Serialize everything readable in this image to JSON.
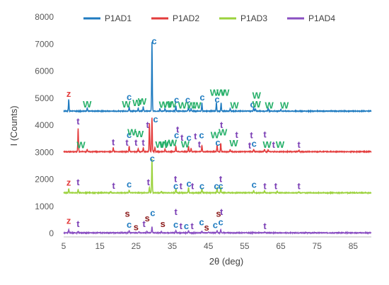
{
  "chart_data": {
    "type": "line",
    "xlabel": "2θ (deg)",
    "ylabel": "I (Counts)",
    "xlim": [
      5,
      90
    ],
    "ylim": [
      0,
      8000
    ],
    "x_ticks": [
      5,
      15,
      25,
      35,
      45,
      55,
      65,
      75,
      85
    ],
    "y_ticks": [
      0,
      1000,
      2000,
      3000,
      4000,
      5000,
      6000,
      7000,
      8000
    ],
    "grid": false,
    "legend_position": "top",
    "series": [
      {
        "name": "P1AD1",
        "color": "#1f7bc0",
        "baseline": 4520,
        "peaks": [
          [
            6.4,
            430
          ],
          [
            11.5,
            120
          ],
          [
            23.1,
            160
          ],
          [
            25.6,
            110
          ],
          [
            27.0,
            160
          ],
          [
            29.4,
            2550
          ],
          [
            31.6,
            90
          ],
          [
            33.0,
            90
          ],
          [
            36.0,
            200
          ],
          [
            39.5,
            220
          ],
          [
            40.2,
            90
          ],
          [
            43.2,
            300
          ],
          [
            47.2,
            300
          ],
          [
            48.5,
            300
          ],
          [
            51.0,
            90
          ],
          [
            57.5,
            120
          ],
          [
            58.0,
            90
          ],
          [
            61.5,
            110
          ],
          [
            65.0,
            70
          ]
        ],
        "labels": [
          {
            "x": 6.4,
            "y": 5050,
            "text": "z",
            "color": "#e33b3b"
          },
          {
            "x": 11.5,
            "y": 4660,
            "text": "W",
            "color": "#27b06a"
          },
          {
            "x": 22.3,
            "y": 4660,
            "text": "W",
            "color": "#27b06a"
          },
          {
            "x": 23.1,
            "y": 4930,
            "text": "c",
            "color": "#1f7bc0"
          },
          {
            "x": 25.2,
            "y": 4700,
            "text": "W",
            "color": "#27b06a"
          },
          {
            "x": 26.7,
            "y": 4760,
            "text": "W",
            "color": "#27b06a"
          },
          {
            "x": 30.0,
            "y": 7000,
            "text": "c",
            "color": "#1f7bc0"
          },
          {
            "x": 32.5,
            "y": 4640,
            "text": "W",
            "color": "#27b06a"
          },
          {
            "x": 33.6,
            "y": 4640,
            "text": "W",
            "color": "#27b06a"
          },
          {
            "x": 35.0,
            "y": 4660,
            "text": "W",
            "color": "#27b06a"
          },
          {
            "x": 36.2,
            "y": 4820,
            "text": "c",
            "color": "#1f7bc0"
          },
          {
            "x": 37.8,
            "y": 4620,
            "text": "W",
            "color": "#27b06a"
          },
          {
            "x": 39.3,
            "y": 4820,
            "text": "c",
            "color": "#1f7bc0"
          },
          {
            "x": 40.2,
            "y": 4620,
            "text": "W",
            "color": "#27b06a"
          },
          {
            "x": 41.8,
            "y": 4620,
            "text": "W",
            "color": "#27b06a"
          },
          {
            "x": 43.3,
            "y": 4920,
            "text": "c",
            "color": "#1f7bc0"
          },
          {
            "x": 46.6,
            "y": 5080,
            "text": "W",
            "color": "#27b06a"
          },
          {
            "x": 47.4,
            "y": 4840,
            "text": "c",
            "color": "#1f7bc0"
          },
          {
            "x": 48.4,
            "y": 5080,
            "text": "W",
            "color": "#27b06a"
          },
          {
            "x": 49.6,
            "y": 5080,
            "text": "W",
            "color": "#27b06a"
          },
          {
            "x": 52.2,
            "y": 4620,
            "text": "W",
            "color": "#27b06a"
          },
          {
            "x": 57.2,
            "y": 4660,
            "text": "c",
            "color": "#1f7bc0"
          },
          {
            "x": 58.3,
            "y": 4980,
            "text": "W",
            "color": "#27b06a"
          },
          {
            "x": 58.3,
            "y": 4660,
            "text": "W",
            "color": "#27b06a"
          },
          {
            "x": 61.8,
            "y": 4620,
            "text": "W",
            "color": "#27b06a"
          },
          {
            "x": 66.0,
            "y": 4620,
            "text": "W",
            "color": "#27b06a"
          }
        ]
      },
      {
        "name": "P1AD2",
        "color": "#e33b3b",
        "baseline": 3020,
        "peaks": [
          [
            9.0,
            850
          ],
          [
            11.5,
            80
          ],
          [
            18.7,
            150
          ],
          [
            23.1,
            200
          ],
          [
            25.6,
            120
          ],
          [
            27.0,
            150
          ],
          [
            28.7,
            1050
          ],
          [
            29.4,
            1250
          ],
          [
            30.2,
            150
          ],
          [
            33.0,
            100
          ],
          [
            36.0,
            200
          ],
          [
            39.5,
            200
          ],
          [
            40.2,
            120
          ],
          [
            43.2,
            230
          ],
          [
            47.4,
            250
          ],
          [
            48.4,
            300
          ],
          [
            51.0,
            80
          ],
          [
            57.5,
            90
          ],
          [
            60.5,
            90
          ],
          [
            61.5,
            70
          ],
          [
            70.0,
            60
          ]
        ],
        "labels": [
          {
            "x": 9.0,
            "y": 4020,
            "text": "t",
            "color": "#7b3fb5"
          },
          {
            "x": 9.8,
            "y": 3150,
            "text": "W",
            "color": "#27b06a"
          },
          {
            "x": 18.7,
            "y": 3250,
            "text": "t",
            "color": "#7b3fb5"
          },
          {
            "x": 22.5,
            "y": 3240,
            "text": "t",
            "color": "#7b3fb5"
          },
          {
            "x": 23.1,
            "y": 3530,
            "text": "c",
            "color": "#1f7bc0"
          },
          {
            "x": 23.8,
            "y": 3620,
            "text": "W",
            "color": "#27b06a"
          },
          {
            "x": 25.0,
            "y": 3240,
            "text": "t",
            "color": "#7b3fb5"
          },
          {
            "x": 25.9,
            "y": 3550,
            "text": "W",
            "color": "#27b06a"
          },
          {
            "x": 27.0,
            "y": 3240,
            "text": "t",
            "color": "#7b3fb5"
          },
          {
            "x": 28.2,
            "y": 3900,
            "text": "t",
            "color": "#7b3fb5"
          },
          {
            "x": 30.4,
            "y": 4100,
            "text": "c",
            "color": "#1f7bc0"
          },
          {
            "x": 31.5,
            "y": 3160,
            "text": "W",
            "color": "#27b06a"
          },
          {
            "x": 32.8,
            "y": 3160,
            "text": "W",
            "color": "#27b06a"
          },
          {
            "x": 34.1,
            "y": 3220,
            "text": "W",
            "color": "#27b06a"
          },
          {
            "x": 35.1,
            "y": 3230,
            "text": "W",
            "color": "#27b06a"
          },
          {
            "x": 36.2,
            "y": 3520,
            "text": "c",
            "color": "#1f7bc0"
          },
          {
            "x": 36.5,
            "y": 3730,
            "text": "t",
            "color": "#7b3fb5"
          },
          {
            "x": 37.7,
            "y": 3420,
            "text": "t",
            "color": "#7b3fb5"
          },
          {
            "x": 38.6,
            "y": 3180,
            "text": "W",
            "color": "#27b06a"
          },
          {
            "x": 39.6,
            "y": 3420,
            "text": "c",
            "color": "#1f7bc0"
          },
          {
            "x": 41.4,
            "y": 3480,
            "text": "t",
            "color": "#7b3fb5"
          },
          {
            "x": 43.1,
            "y": 3520,
            "text": "c",
            "color": "#1f7bc0"
          },
          {
            "x": 42.5,
            "y": 3180,
            "text": "t",
            "color": "#7b3fb5"
          },
          {
            "x": 46.8,
            "y": 3520,
            "text": "W",
            "color": "#27b06a"
          },
          {
            "x": 47.6,
            "y": 3240,
            "text": "c",
            "color": "#1f7bc0"
          },
          {
            "x": 48.6,
            "y": 3900,
            "text": "t",
            "color": "#7b3fb5"
          },
          {
            "x": 49.0,
            "y": 3620,
            "text": "W",
            "color": "#27b06a"
          },
          {
            "x": 52.0,
            "y": 3220,
            "text": "W",
            "color": "#27b06a"
          },
          {
            "x": 52.8,
            "y": 3530,
            "text": "t",
            "color": "#7b3fb5"
          },
          {
            "x": 57.6,
            "y": 3200,
            "text": "c",
            "color": "#1f7bc0"
          },
          {
            "x": 56.9,
            "y": 3520,
            "text": "t",
            "color": "#7b3fb5"
          },
          {
            "x": 56.4,
            "y": 3140,
            "text": "t",
            "color": "#7b3fb5"
          },
          {
            "x": 60.6,
            "y": 3540,
            "text": "t",
            "color": "#7b3fb5"
          },
          {
            "x": 61.2,
            "y": 3160,
            "text": "W",
            "color": "#27b06a"
          },
          {
            "x": 63.0,
            "y": 3160,
            "text": "t",
            "color": "#7b3fb5"
          },
          {
            "x": 64.8,
            "y": 3160,
            "text": "W",
            "color": "#27b06a"
          },
          {
            "x": 70.0,
            "y": 3160,
            "text": "t",
            "color": "#7b3fb5"
          }
        ]
      },
      {
        "name": "P1AD3",
        "color": "#9bd23c",
        "baseline": 1500,
        "peaks": [
          [
            6.4,
            150
          ],
          [
            9.0,
            130
          ],
          [
            18.0,
            50
          ],
          [
            23.1,
            100
          ],
          [
            28.7,
            200
          ],
          [
            29.4,
            1250
          ],
          [
            32.0,
            60
          ],
          [
            36.0,
            150
          ],
          [
            39.5,
            200
          ],
          [
            43.2,
            160
          ],
          [
            47.4,
            180
          ],
          [
            48.4,
            200
          ],
          [
            57.5,
            80
          ],
          [
            60.5,
            60
          ],
          [
            64.0,
            50
          ],
          [
            70.0,
            40
          ]
        ],
        "labels": [
          {
            "x": 6.4,
            "y": 1770,
            "text": "z",
            "color": "#e33b3b"
          },
          {
            "x": 9.0,
            "y": 1780,
            "text": "t",
            "color": "#7b3fb5"
          },
          {
            "x": 18.8,
            "y": 1650,
            "text": "t",
            "color": "#7b3fb5"
          },
          {
            "x": 23.1,
            "y": 1700,
            "text": "c",
            "color": "#1f7bc0"
          },
          {
            "x": 28.4,
            "y": 1780,
            "text": "t",
            "color": "#7b3fb5"
          },
          {
            "x": 29.5,
            "y": 2650,
            "text": "c",
            "color": "#1f7bc0"
          },
          {
            "x": 35.9,
            "y": 1890,
            "text": "t",
            "color": "#7b3fb5"
          },
          {
            "x": 36.0,
            "y": 1640,
            "text": "c",
            "color": "#1f7bc0"
          },
          {
            "x": 37.4,
            "y": 1640,
            "text": "t",
            "color": "#7b3fb5"
          },
          {
            "x": 39.6,
            "y": 1720,
            "text": "c",
            "color": "#1f7bc0"
          },
          {
            "x": 40.6,
            "y": 1640,
            "text": "t",
            "color": "#7b3fb5"
          },
          {
            "x": 43.2,
            "y": 1640,
            "text": "c",
            "color": "#1f7bc0"
          },
          {
            "x": 47.2,
            "y": 1640,
            "text": "c",
            "color": "#1f7bc0"
          },
          {
            "x": 48.4,
            "y": 1890,
            "text": "t",
            "color": "#7b3fb5"
          },
          {
            "x": 48.4,
            "y": 1640,
            "text": "c",
            "color": "#1f7bc0"
          },
          {
            "x": 57.6,
            "y": 1680,
            "text": "c",
            "color": "#1f7bc0"
          },
          {
            "x": 60.6,
            "y": 1640,
            "text": "t",
            "color": "#7b3fb5"
          },
          {
            "x": 63.6,
            "y": 1640,
            "text": "t",
            "color": "#7b3fb5"
          },
          {
            "x": 70.0,
            "y": 1640,
            "text": "t",
            "color": "#7b3fb5"
          }
        ]
      },
      {
        "name": "P1AD4",
        "color": "#8a4fc2",
        "baseline": 20,
        "peaks": [
          [
            6.4,
            110
          ],
          [
            9.0,
            60
          ],
          [
            23.1,
            80
          ],
          [
            25.8,
            40
          ],
          [
            28.0,
            50
          ],
          [
            29.4,
            220
          ],
          [
            32.0,
            60
          ],
          [
            36.0,
            90
          ],
          [
            39.5,
            80
          ],
          [
            43.2,
            70
          ],
          [
            45.0,
            40
          ],
          [
            47.4,
            90
          ],
          [
            48.4,
            110
          ],
          [
            57.5,
            30
          ],
          [
            60.6,
            30
          ]
        ],
        "labels": [
          {
            "x": 6.4,
            "y": 350,
            "text": "z",
            "color": "#e33b3b"
          },
          {
            "x": 9.0,
            "y": 230,
            "text": "t",
            "color": "#7b3fb5"
          },
          {
            "x": 22.6,
            "y": 620,
            "text": "s",
            "color": "#8b1a1a"
          },
          {
            "x": 23.1,
            "y": 210,
            "text": "c",
            "color": "#1f7bc0"
          },
          {
            "x": 25.0,
            "y": 120,
            "text": "s",
            "color": "#8b1a1a"
          },
          {
            "x": 27.2,
            "y": 240,
            "text": "t",
            "color": "#7b3fb5"
          },
          {
            "x": 28.1,
            "y": 440,
            "text": "s",
            "color": "#8b1a1a"
          },
          {
            "x": 29.6,
            "y": 640,
            "text": "c",
            "color": "#1f7bc0"
          },
          {
            "x": 32.4,
            "y": 240,
            "text": "s",
            "color": "#8b1a1a"
          },
          {
            "x": 36.0,
            "y": 210,
            "text": "c",
            "color": "#1f7bc0"
          },
          {
            "x": 36.0,
            "y": 680,
            "text": "t",
            "color": "#7b3fb5"
          },
          {
            "x": 37.4,
            "y": 160,
            "text": "t",
            "color": "#7b3fb5"
          },
          {
            "x": 38.9,
            "y": 160,
            "text": "c",
            "color": "#1f7bc0"
          },
          {
            "x": 40.5,
            "y": 160,
            "text": "t",
            "color": "#7b3fb5"
          },
          {
            "x": 43.1,
            "y": 300,
            "text": "c",
            "color": "#1f7bc0"
          },
          {
            "x": 44.5,
            "y": 100,
            "text": "s",
            "color": "#8b1a1a"
          },
          {
            "x": 46.9,
            "y": 200,
            "text": "c",
            "color": "#1f7bc0"
          },
          {
            "x": 47.8,
            "y": 620,
            "text": "s",
            "color": "#8b1a1a"
          },
          {
            "x": 48.6,
            "y": 680,
            "text": "t",
            "color": "#7b3fb5"
          },
          {
            "x": 48.4,
            "y": 300,
            "text": "c",
            "color": "#1f7bc0"
          },
          {
            "x": 60.6,
            "y": 160,
            "text": "t",
            "color": "#7b3fb5"
          }
        ]
      }
    ]
  }
}
